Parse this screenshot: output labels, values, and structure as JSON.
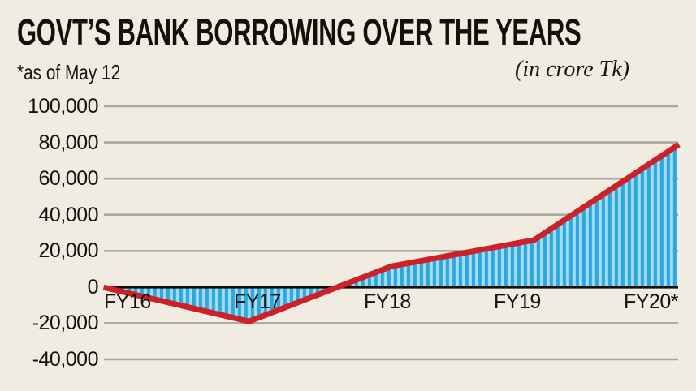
{
  "header": {
    "title": "GOVT’S BANK BORROWING OVER THE YEARS",
    "note": "*as of May 12",
    "unit": "(in crore Tk)"
  },
  "chart_data": {
    "type": "area",
    "title": "GOVT’S BANK BORROWING OVER THE YEARS",
    "subtitle_note": "*as of May 12",
    "unit": "(in crore Tk)",
    "categories": [
      "FY16",
      "FY17",
      "FY18",
      "FY19",
      "FY20*"
    ],
    "values": [
      -500,
      -19000,
      11500,
      26000,
      78000
    ],
    "ylim": [
      -40000,
      100000
    ],
    "yticks": [
      100000,
      80000,
      60000,
      40000,
      20000,
      0,
      -20000,
      -40000
    ],
    "grid": true,
    "legend": false,
    "colors": {
      "line": "#cd2127",
      "area_stripe_dark": "#2aa9e0",
      "area_stripe_light": "#a9dbf2",
      "background": "#f1ece1",
      "gridline": "#a9a69f",
      "zero_axis": "#12100d",
      "text": "#16130e"
    }
  }
}
